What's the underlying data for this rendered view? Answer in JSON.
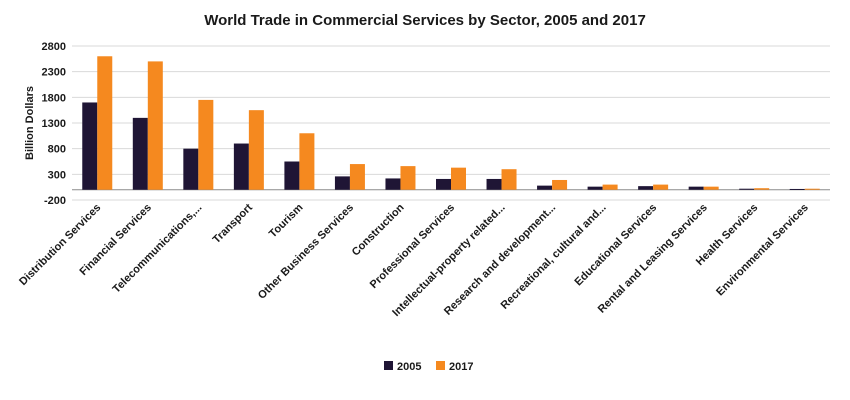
{
  "chart_data": {
    "type": "bar",
    "title": "World Trade in Commercial Services by Sector, 2005 and 2017",
    "xlabel": "",
    "ylabel": "Billion Dollars",
    "ylim": [
      -200,
      2800
    ],
    "yticks": [
      -200,
      300,
      800,
      1300,
      1800,
      2300,
      2800
    ],
    "grid": true,
    "legend": "bottom",
    "categories": [
      "Distribution Services",
      "Financial Services",
      "Telecommunications,...",
      "Transport",
      "Tourism",
      "Other Business Services",
      "Construction",
      "Professional Services",
      "Intellectual-property related...",
      "Research and development...",
      "Recreational, cultural and...",
      "Educational Services",
      "Rental and Leasing Services",
      "Health Services",
      "Environmental Services"
    ],
    "series": [
      {
        "name": "2005",
        "color": "#1f1535",
        "values": [
          1700,
          1400,
          800,
          900,
          550,
          260,
          220,
          210,
          210,
          80,
          60,
          70,
          60,
          20,
          15
        ]
      },
      {
        "name": "2017",
        "color": "#f5891f",
        "values": [
          2600,
          2500,
          1750,
          1550,
          1100,
          500,
          460,
          430,
          400,
          190,
          100,
          100,
          60,
          30,
          20
        ]
      }
    ]
  }
}
